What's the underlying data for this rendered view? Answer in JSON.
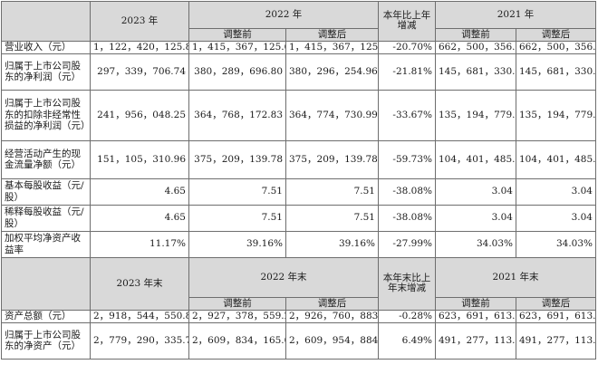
{
  "header_top": {
    "y2023": "2023 年",
    "y2022": "2022 年",
    "change": "本年比上年增减",
    "y2021": "2021 年",
    "before": "调整前",
    "after": "调整后"
  },
  "rows_top": [
    {
      "label": "营业收入（元）",
      "v2023": "1，122，420，125.89",
      "v2022_before": "1，415，367，125.64",
      "v2022_after": "1，415，367，125.64",
      "change": "-20.70%",
      "v2021_before": "662，500，356.97",
      "v2021_after": "662，500，356.97"
    },
    {
      "label": "归属于上市公司股东的净利润（元）",
      "v2023": "297，339，706.74",
      "v2022_before": "380，289，696.80",
      "v2022_after": "380，296，254.96",
      "change": "-21.81%",
      "v2021_before": "145，681，330.12",
      "v2021_after": "145，681，330.12"
    },
    {
      "label": "归属于上市公司股东的扣除非经常性损益的净利润（元）",
      "v2023": "241，956，048.25",
      "v2022_before": "364，768，172.83",
      "v2022_after": "364，774，730.99",
      "change": "-33.67%",
      "v2021_before": "135，194，779.70",
      "v2021_after": "135，194，779.70"
    },
    {
      "label": "经营活动产生的现金流量净额（元）",
      "v2023": "151，105，310.96",
      "v2022_before": "375，209，139.78",
      "v2022_after": "375，209，139.78",
      "change": "-59.73%",
      "v2021_before": "104，401，485.06",
      "v2021_after": "104，401，485.06"
    },
    {
      "label": "基本每股收益（元/股）",
      "v2023": "4.65",
      "v2022_before": "7.51",
      "v2022_after": "7.51",
      "change": "-38.08%",
      "v2021_before": "3.04",
      "v2021_after": "3.04"
    },
    {
      "label": "稀释每股收益（元/股）",
      "v2023": "4.65",
      "v2022_before": "7.51",
      "v2022_after": "7.51",
      "change": "-38.08%",
      "v2021_before": "3.04",
      "v2021_after": "3.04"
    },
    {
      "label": "加权平均净资产收益率",
      "v2023": "11.17%",
      "v2022_before": "39.16%",
      "v2022_after": "39.16%",
      "change": "-27.99%",
      "v2021_before": "34.03%",
      "v2021_after": "34.03%"
    }
  ],
  "header_bottom": {
    "y2023": "2023 年末",
    "y2022": "2022 年末",
    "change": "本年末比上年末增减",
    "y2021": "2021 年末",
    "before": "调整前",
    "after": "调整后"
  },
  "rows_bottom": [
    {
      "label": "资产总额（元）",
      "v2023": "2，918，544，550.84",
      "v2022_before": "2，927，378，559.21",
      "v2022_after": "2，926，760，883.81",
      "change": "-0.28%",
      "v2021_before": "623，691，613.69",
      "v2021_after": "623，691，613.69"
    },
    {
      "label": "归属于上市公司股东的净资产（元）",
      "v2023": "2，779，290，335.70",
      "v2022_before": "2，609，834，165.09",
      "v2022_after": "2，609，954，884.85",
      "change": "6.49%",
      "v2021_before": "491，277，113.61",
      "v2021_after": "491，277，113.61"
    }
  ]
}
